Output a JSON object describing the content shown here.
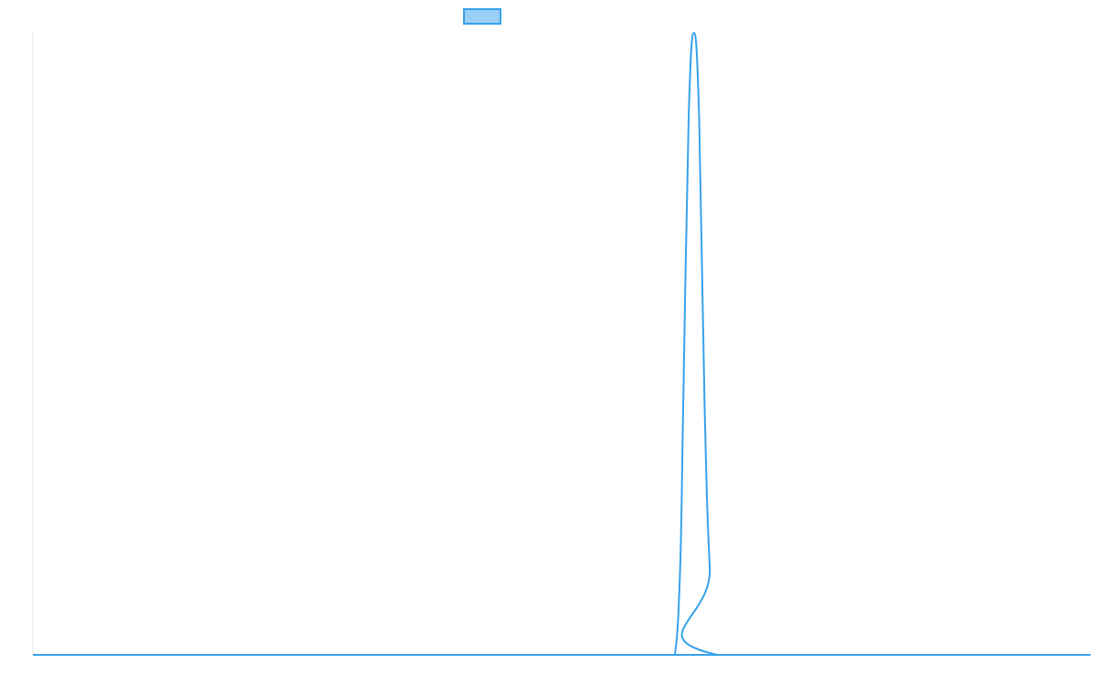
{
  "chart_data": {
    "type": "line",
    "title": "",
    "xlabel": "",
    "ylabel": "",
    "x": [
      0,
      600,
      607,
      612,
      615,
      620,
      625,
      630,
      635,
      640,
      647,
      1000
    ],
    "series": [
      {
        "name": "",
        "color": "#36a2eb",
        "fill": "#9ad0f5",
        "values": [
          0,
          0,
          0,
          0.14,
          0.41,
          0.86,
          1,
          0.86,
          0.41,
          0.14,
          0,
          0
        ]
      }
    ],
    "xlim": [
      0,
      1000
    ],
    "ylim": [
      0,
      1
    ],
    "grid": false,
    "legend": "top-center"
  }
}
